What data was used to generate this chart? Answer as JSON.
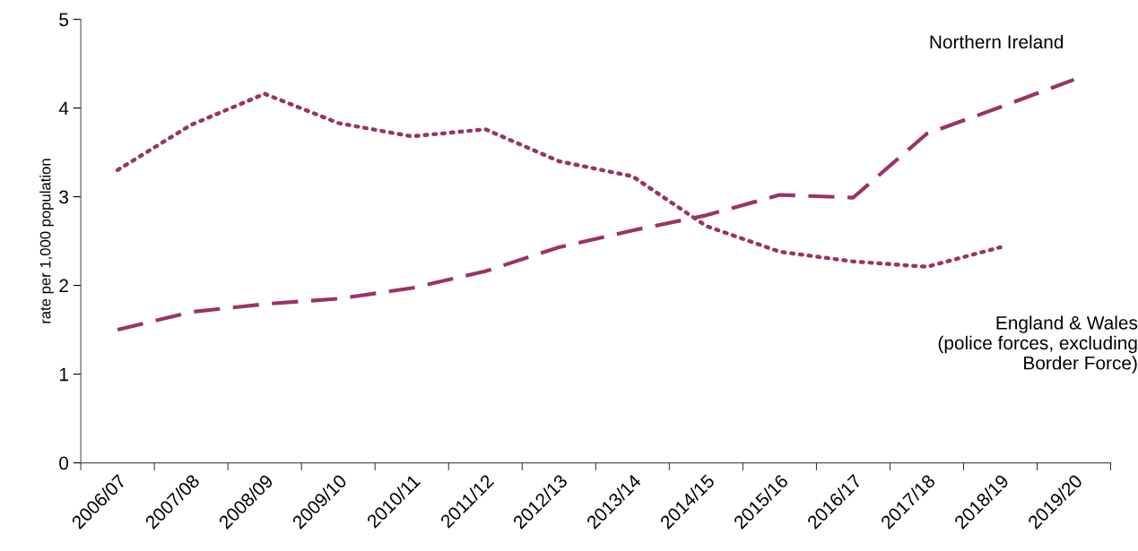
{
  "chart_data": {
    "type": "line",
    "ylabel": "rate per 1,000 population",
    "categories": [
      "2006/07",
      "2007/08",
      "2008/09",
      "2009/10",
      "2010/11",
      "2011/12",
      "2012/13",
      "2013/14",
      "2014/15",
      "2015/16",
      "2016/17",
      "2017/18",
      "2018/19",
      "2019/20"
    ],
    "series": [
      {
        "name": "Northern Ireland",
        "color": "#9b3365",
        "line_style": "dashed",
        "values": [
          1.5,
          1.7,
          1.79,
          1.85,
          1.97,
          2.16,
          2.43,
          2.62,
          2.79,
          3.02,
          2.99,
          3.71,
          4.01,
          4.32
        ]
      },
      {
        "name": "England & Wales (police forces, excluding Border Force)",
        "color": "#9b3365",
        "line_style": "dotted",
        "values": [
          3.3,
          3.81,
          4.16,
          3.83,
          3.68,
          3.76,
          3.4,
          3.23,
          2.67,
          2.38,
          2.27,
          2.21,
          2.43,
          null
        ]
      }
    ],
    "ylim": [
      0,
      5
    ],
    "yticks": [
      0,
      1,
      2,
      3,
      4,
      5
    ],
    "grid": false,
    "legend": false,
    "marker": "none"
  }
}
